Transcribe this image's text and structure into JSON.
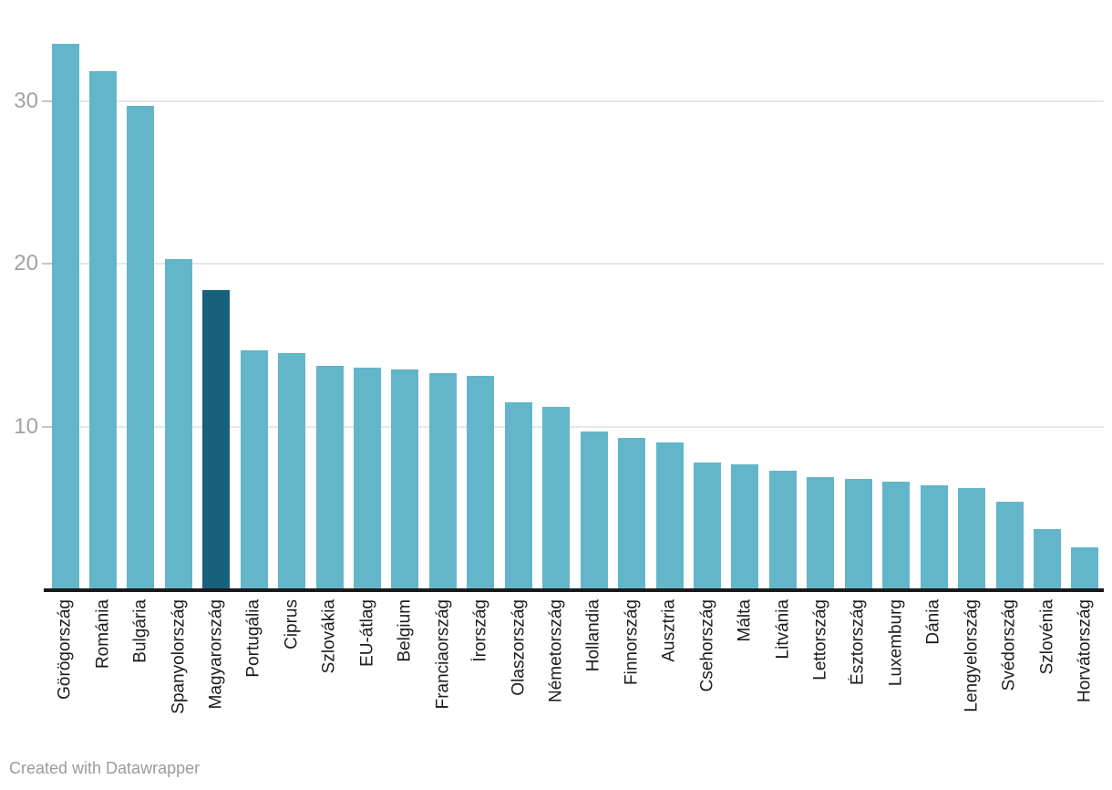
{
  "chart_data": {
    "type": "bar",
    "title": "",
    "xlabel": "",
    "ylabel": "",
    "categories": [
      "Görögország",
      "Románia",
      "Bulgária",
      "Spanyolország",
      "Magyarország",
      "Portugália",
      "Ciprus",
      "Szlovákia",
      "EU-átlag",
      "Belgium",
      "Franciaország",
      "Írország",
      "Olaszország",
      "Németország",
      "Hollandia",
      "Finnország",
      "Ausztria",
      "Csehország",
      "Málta",
      "Litvánia",
      "Lettország",
      "Észtország",
      "Luxemburg",
      "Dánia",
      "Lengyelország",
      "Svédország",
      "Szlovénia",
      "Horvátország"
    ],
    "values": [
      33.5,
      31.8,
      29.7,
      20.3,
      18.4,
      14.7,
      14.5,
      13.7,
      13.6,
      13.5,
      13.3,
      13.1,
      11.5,
      11.2,
      9.7,
      9.3,
      9.0,
      7.8,
      7.7,
      7.3,
      6.9,
      6.8,
      6.6,
      6.4,
      6.2,
      5.4,
      3.7,
      2.6
    ],
    "highlight_category": "Magyarország",
    "yticks": [
      10,
      20,
      30
    ],
    "ytick_labels": [
      "10",
      "20",
      "30"
    ],
    "ylim": [
      0,
      33.5
    ],
    "grid": "horizontal",
    "legend_position": "none",
    "x_label_rotation": -90,
    "bar_color": "#63b6c9",
    "highlight_color": "#17617d"
  },
  "footer": {
    "text": "Created with Datawrapper"
  },
  "colors": {
    "bar": "#63b6c9",
    "highlight": "#17617d",
    "axis_line": "#1a1a1a",
    "gridline": "#e7e7e7",
    "tick_label": "#a2a2a2",
    "category_label": "#1d1d1d",
    "footer_text": "#9b9b9b",
    "background": "#ffffff"
  }
}
